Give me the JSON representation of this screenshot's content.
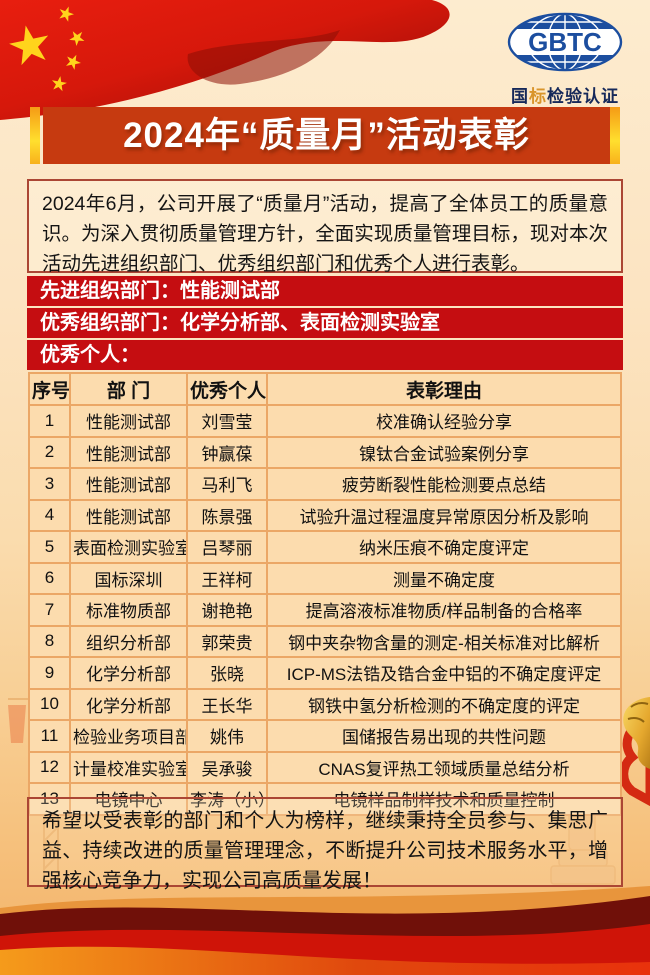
{
  "poster": {
    "logo": {
      "acronym": "GBTC",
      "subtitle_prefix": "国",
      "subtitle_highlight": "标",
      "subtitle_suffix": "检验认证"
    },
    "title": "2024年“质量月”活动表彰",
    "intro": "2024年6月，公司开展了“质量月”活动，提高了全体员工的质量意识。为深入贯彻质量管理方针，全面实现质量管理目标，现对本次活动先进组织部门、优秀组织部门和优秀个人进行表彰。",
    "award_bars": [
      "先进组织部门：性能测试部",
      "优秀组织部门：化学分析部、表面检测实验室",
      "优秀个人："
    ],
    "closing": "希望以受表彰的部门和个人为榜样，继续秉持全员参与、集思广益、持续改进的质量管理理念，不断提升公司技术服务水平，增强核心竞争力，实现公司高质量发展！"
  },
  "table": {
    "headers": [
      "序号",
      "部 门",
      "优秀个人",
      "表彰理由"
    ],
    "rows": [
      [
        "1",
        "性能测试部",
        "刘雪莹",
        "校准确认经验分享"
      ],
      [
        "2",
        "性能测试部",
        "钟赢葆",
        "镍钛合金试验案例分享"
      ],
      [
        "3",
        "性能测试部",
        "马利飞",
        "疲劳断裂性能检测要点总结"
      ],
      [
        "4",
        "性能测试部",
        "陈景强",
        "试验升温过程温度异常原因分析及影响"
      ],
      [
        "5",
        "表面检测实验室",
        "吕琴丽",
        "纳米压痕不确定度评定"
      ],
      [
        "6",
        "国标深圳",
        "王祥柯",
        "测量不确定度"
      ],
      [
        "7",
        "标准物质部",
        "谢艳艳",
        "提高溶液标准物质/样品制备的合格率"
      ],
      [
        "8",
        "组织分析部",
        "郭荣贵",
        "钢中夹杂物含量的测定-相关标准对比解析"
      ],
      [
        "9",
        "化学分析部",
        "张晓",
        "ICP-MS法锆及锆合金中铝的不确定度评定"
      ],
      [
        "10",
        "化学分析部",
        "王长华",
        "钢铁中氢分析检测的不确定度的评定"
      ],
      [
        "11",
        "检验业务项目部",
        "姚伟",
        "国储报告易出现的共性问题"
      ],
      [
        "12",
        "计量校准实验室",
        "吴承骏",
        "CNAS复评热工领域质量总结分析"
      ],
      [
        "13",
        "电镜中心",
        "李涛（小）",
        "电镜样品制样技术和质量控制"
      ]
    ]
  },
  "colors": {
    "banner_red": "#c63a10",
    "bar_red": "#c50d11",
    "gold": "#ffdf2e",
    "table_border": "#eba766",
    "cell_bg": "#fcdcae",
    "box_border": "#ab4634",
    "logo_blue": "#1c4e9f",
    "logo_gold": "#d9952b",
    "flag_red": "#d6180b",
    "star_yellow": "#ffd41c"
  }
}
